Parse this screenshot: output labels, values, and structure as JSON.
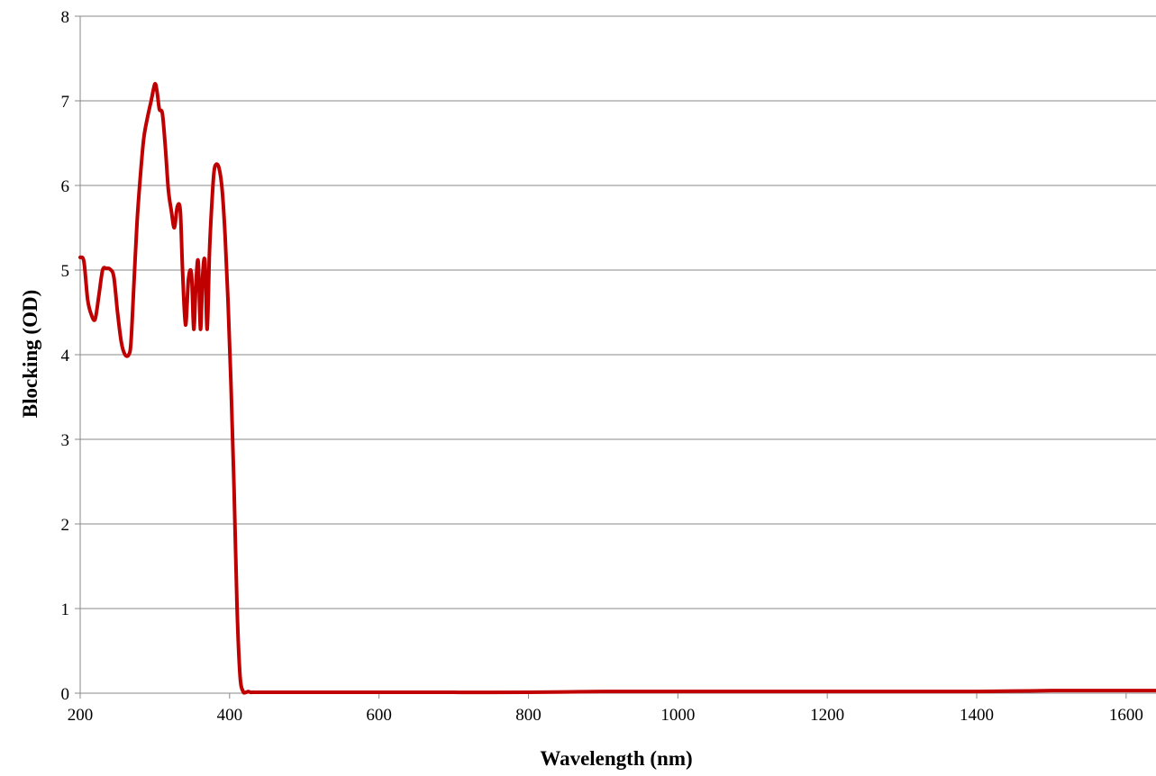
{
  "chart_data": {
    "type": "line",
    "title": "",
    "xlabel": "Wavelength (nm)",
    "ylabel": "Blocking (OD)",
    "xlim": [
      200,
      1640
    ],
    "ylim": [
      0,
      8
    ],
    "x_ticks": [
      200,
      400,
      600,
      800,
      1000,
      1200,
      1400,
      1600
    ],
    "y_ticks": [
      0,
      1,
      2,
      3,
      4,
      5,
      6,
      7,
      8
    ],
    "x_tick_labels": [
      "200",
      "400",
      "600",
      "800",
      "1000",
      "1200",
      "1400",
      "1600"
    ],
    "y_tick_labels": [
      "0",
      "1",
      "2",
      "3",
      "4",
      "5",
      "6",
      "7",
      "8"
    ],
    "grid": "horizontal",
    "legend": "none",
    "line_color": "#C00000",
    "gridline_color": "#888888",
    "series": [
      {
        "x": [
          200,
          205,
          210,
          215,
          220,
          225,
          230,
          235,
          240,
          245,
          250,
          255,
          260,
          265,
          268,
          272,
          276,
          280,
          285,
          290,
          295,
          300,
          303,
          306,
          310,
          314,
          318,
          322,
          326,
          330,
          334,
          337,
          341,
          345,
          349,
          352,
          355,
          358,
          361,
          364,
          367,
          370,
          373,
          376,
          379,
          382,
          386,
          390,
          394,
          398,
          402,
          406,
          410,
          414,
          418,
          422,
          425,
          428,
          430,
          432,
          440,
          460,
          500,
          600,
          700,
          800,
          900,
          1000,
          1100,
          1200,
          1300,
          1400,
          1500,
          1600,
          1640
        ],
        "y": [
          5.15,
          5.1,
          4.65,
          4.47,
          4.42,
          4.7,
          5.0,
          5.02,
          5.01,
          4.92,
          4.5,
          4.15,
          4.0,
          4.0,
          4.15,
          4.85,
          5.55,
          6.05,
          6.55,
          6.8,
          7.0,
          7.2,
          7.1,
          6.9,
          6.85,
          6.45,
          5.95,
          5.7,
          5.5,
          5.75,
          5.7,
          5.0,
          4.35,
          4.9,
          4.95,
          4.3,
          4.85,
          5.1,
          4.3,
          4.95,
          5.1,
          4.3,
          5.2,
          5.75,
          6.15,
          6.25,
          6.2,
          5.95,
          5.4,
          4.6,
          3.6,
          2.4,
          1.0,
          0.2,
          0.02,
          0.01,
          0.02,
          0.01,
          0.01,
          0.01,
          0.01,
          0.01,
          0.01,
          0.01,
          0.01,
          0.01,
          0.02,
          0.02,
          0.02,
          0.02,
          0.02,
          0.02,
          0.03,
          0.03,
          0.03
        ]
      }
    ]
  }
}
